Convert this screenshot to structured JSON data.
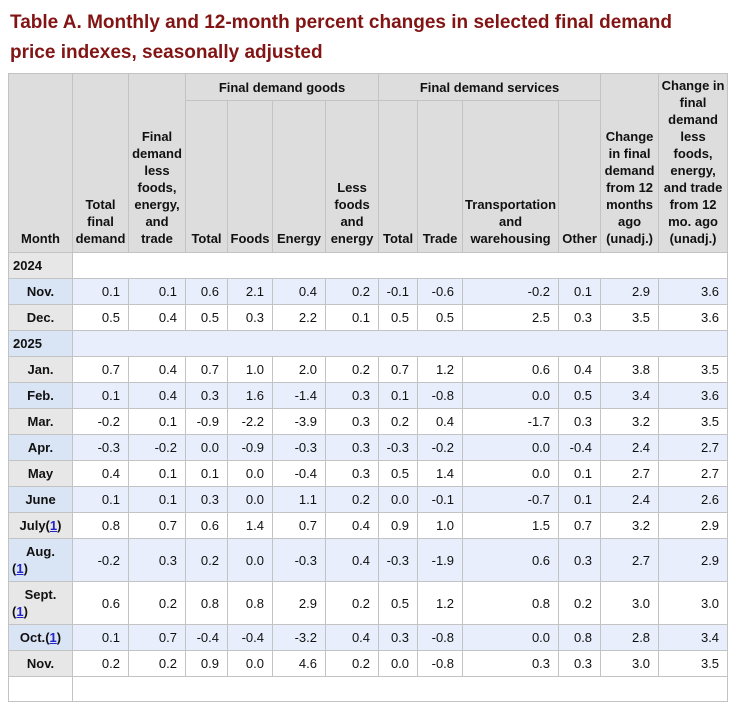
{
  "title": "Table A. Monthly and 12-month percent changes in selected final demand price indexes, seasonally adjusted",
  "colors": {
    "title_text": "#821414",
    "header_bg": "#dddddd",
    "month_cell_gray": "#e7e7e7",
    "month_cell_blue": "#d9e4f5",
    "data_cell_blue": "#e8eefb",
    "footnote_link": "#2323cc"
  },
  "header": {
    "month": "Month",
    "total_final_demand": "Total final demand",
    "less_foods_energy_trade": "Final demand less foods, energy, and trade",
    "goods_group": "Final demand goods",
    "goods_cols": [
      "Total",
      "Foods",
      "Energy",
      "Less foods and energy"
    ],
    "services_group": "Final demand services",
    "services_cols": [
      "Total",
      "Trade",
      "Transportation and warehousing",
      "Other"
    ],
    "change_12mo": "Change in final demand from 12 months ago (unadj.)",
    "change_12mo_less": "Change in final demand less foods, energy, and trade from 12 mo. ago (unadj.)"
  },
  "footnote": {
    "open": "(",
    "label": "1",
    "close": ")"
  },
  "rows": [
    {
      "type": "year",
      "label": "2024",
      "shade": "white"
    },
    {
      "type": "month",
      "label": "Nov.",
      "shade": "blue",
      "fn": false,
      "fn_block": false,
      "values": [
        "0.1",
        "0.1",
        "0.6",
        "2.1",
        "0.4",
        "0.2",
        "-0.1",
        "-0.6",
        "-0.2",
        "0.1",
        "2.9",
        "3.6"
      ]
    },
    {
      "type": "month",
      "label": "Dec.",
      "shade": "white",
      "fn": false,
      "fn_block": false,
      "values": [
        "0.5",
        "0.4",
        "0.5",
        "0.3",
        "2.2",
        "0.1",
        "0.5",
        "0.5",
        "2.5",
        "0.3",
        "3.5",
        "3.6"
      ]
    },
    {
      "type": "year",
      "label": "2025",
      "shade": "blue"
    },
    {
      "type": "month",
      "label": "Jan.",
      "shade": "white",
      "fn": false,
      "fn_block": false,
      "values": [
        "0.7",
        "0.4",
        "0.7",
        "1.0",
        "2.0",
        "0.2",
        "0.7",
        "1.2",
        "0.6",
        "0.4",
        "3.8",
        "3.5"
      ]
    },
    {
      "type": "month",
      "label": "Feb.",
      "shade": "blue",
      "fn": false,
      "fn_block": false,
      "values": [
        "0.1",
        "0.4",
        "0.3",
        "1.6",
        "-1.4",
        "0.3",
        "0.1",
        "-0.8",
        "0.0",
        "0.5",
        "3.4",
        "3.6"
      ]
    },
    {
      "type": "month",
      "label": "Mar.",
      "shade": "white",
      "fn": false,
      "fn_block": false,
      "values": [
        "-0.2",
        "0.1",
        "-0.9",
        "-2.2",
        "-3.9",
        "0.3",
        "0.2",
        "0.4",
        "-1.7",
        "0.3",
        "3.2",
        "3.5"
      ]
    },
    {
      "type": "month",
      "label": "Apr.",
      "shade": "blue",
      "fn": false,
      "fn_block": false,
      "values": [
        "-0.3",
        "-0.2",
        "0.0",
        "-0.9",
        "-0.3",
        "0.3",
        "-0.3",
        "-0.2",
        "0.0",
        "-0.4",
        "2.4",
        "2.7"
      ]
    },
    {
      "type": "month",
      "label": "May",
      "shade": "white",
      "fn": false,
      "fn_block": false,
      "values": [
        "0.4",
        "0.1",
        "0.1",
        "0.0",
        "-0.4",
        "0.3",
        "0.5",
        "1.4",
        "0.0",
        "0.1",
        "2.7",
        "2.7"
      ]
    },
    {
      "type": "month",
      "label": "June",
      "shade": "blue",
      "fn": false,
      "fn_block": false,
      "values": [
        "0.1",
        "0.1",
        "0.3",
        "0.0",
        "1.1",
        "0.2",
        "0.0",
        "-0.1",
        "-0.7",
        "0.1",
        "2.4",
        "2.6"
      ]
    },
    {
      "type": "month",
      "label": "July",
      "shade": "white",
      "fn": true,
      "fn_block": false,
      "values": [
        "0.8",
        "0.7",
        "0.6",
        "1.4",
        "0.7",
        "0.4",
        "0.9",
        "1.0",
        "1.5",
        "0.7",
        "3.2",
        "2.9"
      ]
    },
    {
      "type": "month",
      "label": "Aug.",
      "shade": "blue",
      "fn": true,
      "fn_block": true,
      "values": [
        "-0.2",
        "0.3",
        "0.2",
        "0.0",
        "-0.3",
        "0.4",
        "-0.3",
        "-1.9",
        "0.6",
        "0.3",
        "2.7",
        "2.9"
      ]
    },
    {
      "type": "month",
      "label": "Sept.",
      "shade": "white",
      "fn": true,
      "fn_block": true,
      "values": [
        "0.6",
        "0.2",
        "0.8",
        "0.8",
        "2.9",
        "0.2",
        "0.5",
        "1.2",
        "0.8",
        "0.2",
        "3.0",
        "3.0"
      ]
    },
    {
      "type": "month",
      "label": "Oct.",
      "shade": "blue",
      "fn": true,
      "fn_block": false,
      "values": [
        "0.1",
        "0.7",
        "-0.4",
        "-0.4",
        "-3.2",
        "0.4",
        "0.3",
        "-0.8",
        "0.0",
        "0.8",
        "2.8",
        "3.4"
      ]
    },
    {
      "type": "month",
      "label": "Nov.",
      "shade": "white",
      "fn": false,
      "fn_block": false,
      "values": [
        "0.2",
        "0.2",
        "0.9",
        "0.0",
        "4.6",
        "0.2",
        "0.0",
        "-0.8",
        "0.3",
        "0.3",
        "3.0",
        "3.5"
      ]
    }
  ]
}
